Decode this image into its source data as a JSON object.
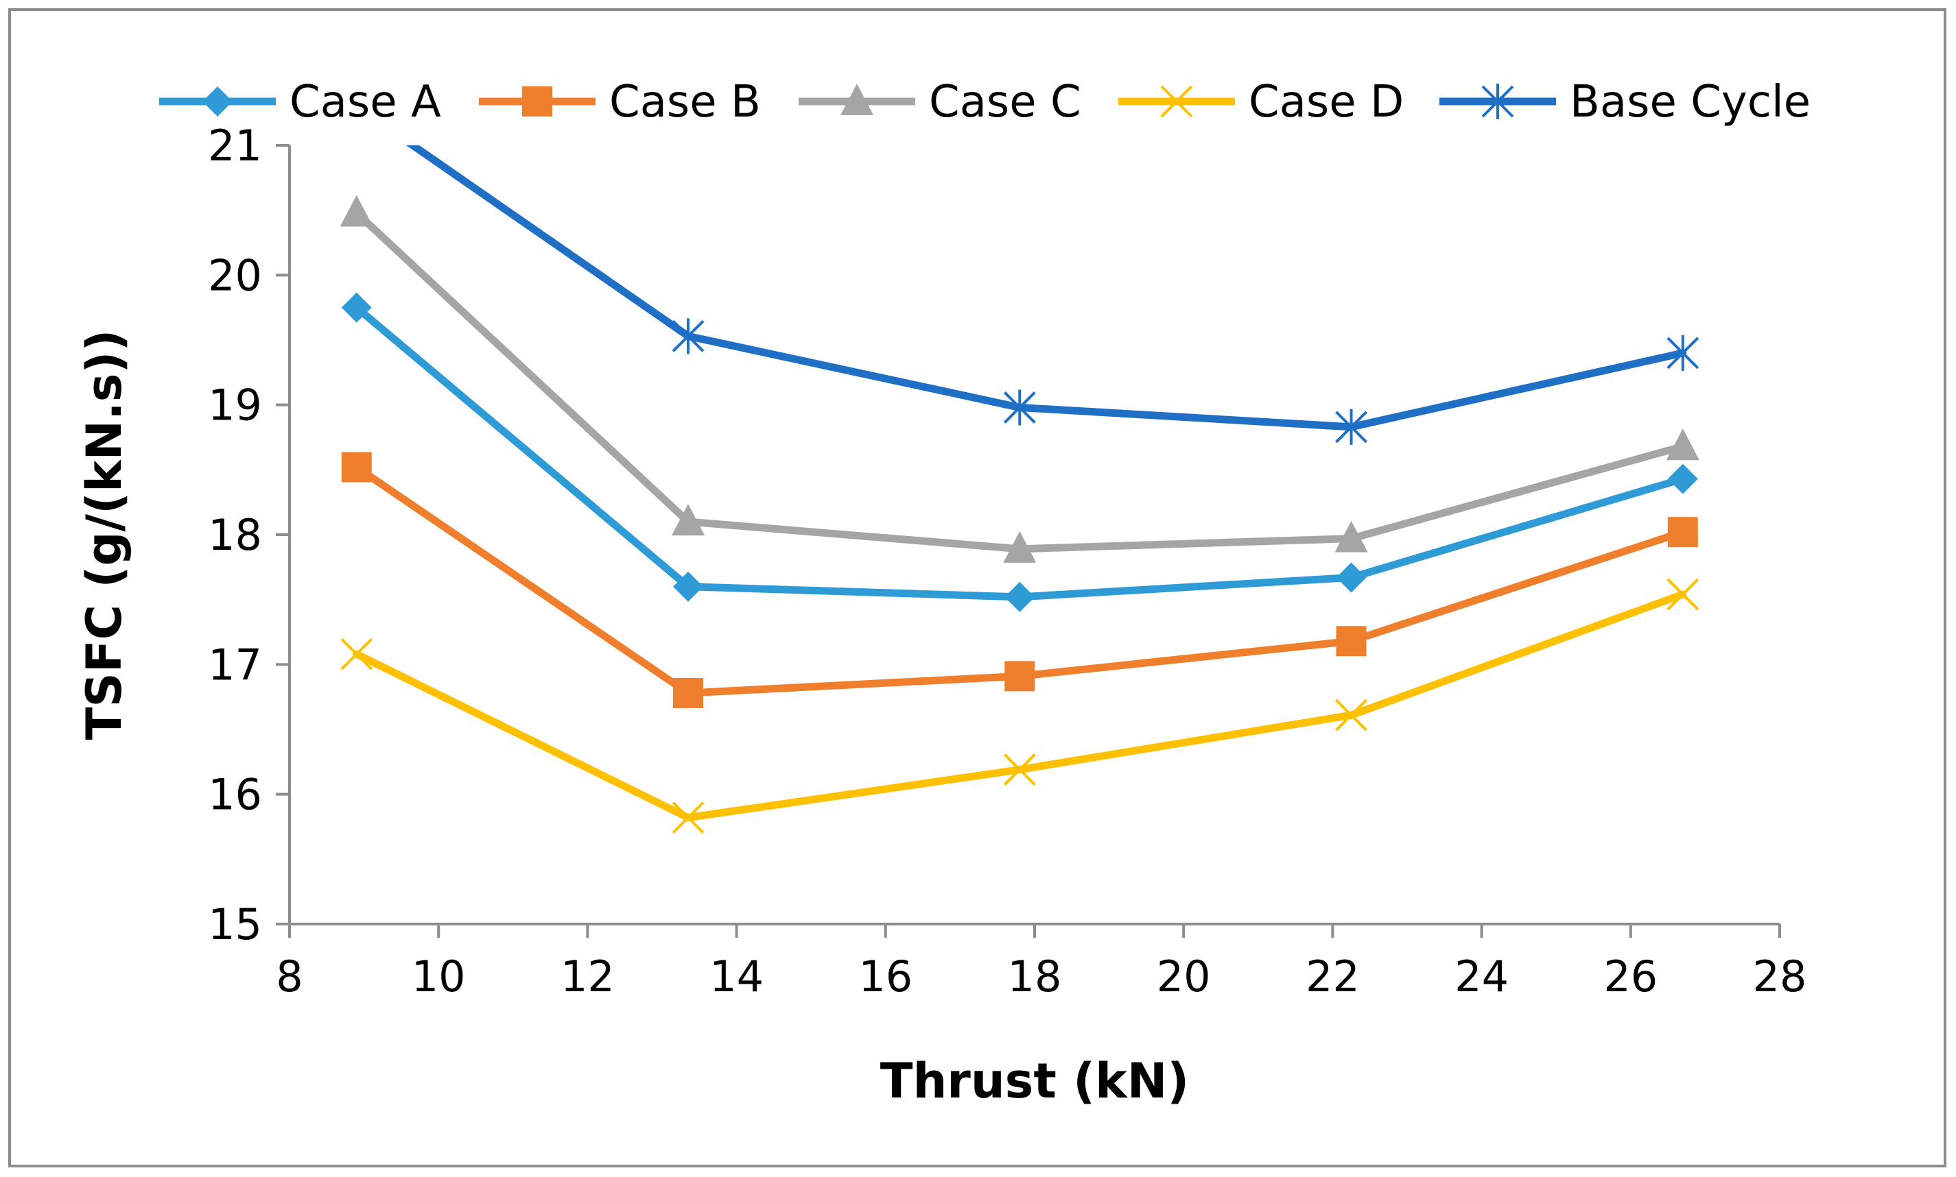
{
  "chart_data": {
    "type": "line",
    "title": "",
    "xlabel": "Thrust (kN)",
    "ylabel": "TSFC (g/(kN.s))",
    "xlim": [
      8,
      28
    ],
    "ylim": [
      15,
      21
    ],
    "xticks": [
      8,
      10,
      12,
      14,
      16,
      18,
      20,
      22,
      24,
      26,
      28
    ],
    "yticks": [
      15,
      16,
      17,
      18,
      19,
      20,
      21
    ],
    "grid": false,
    "legend_position": "top",
    "x": [
      8.9,
      13.35,
      17.8,
      22.25,
      26.7
    ],
    "series": [
      {
        "name": "Case A",
        "marker": "diamond",
        "color": "#2e9bd6",
        "values": [
          19.75,
          17.6,
          17.52,
          17.67,
          18.43
        ]
      },
      {
        "name": "Case B",
        "marker": "square",
        "color": "#f07f2d",
        "values": [
          18.52,
          16.78,
          16.91,
          17.18,
          18.02
        ]
      },
      {
        "name": "Case C",
        "marker": "triangle",
        "color": "#a5a5a5",
        "values": [
          20.48,
          18.1,
          17.89,
          17.97,
          18.68
        ]
      },
      {
        "name": "Case D",
        "marker": "x",
        "color": "#ffc000",
        "values": [
          17.08,
          15.82,
          16.19,
          16.61,
          17.54
        ]
      },
      {
        "name": "Base Cycle",
        "marker": "star",
        "color": "#1f6fc5",
        "values": [
          21.3,
          19.53,
          18.98,
          18.83,
          19.4
        ]
      }
    ]
  }
}
